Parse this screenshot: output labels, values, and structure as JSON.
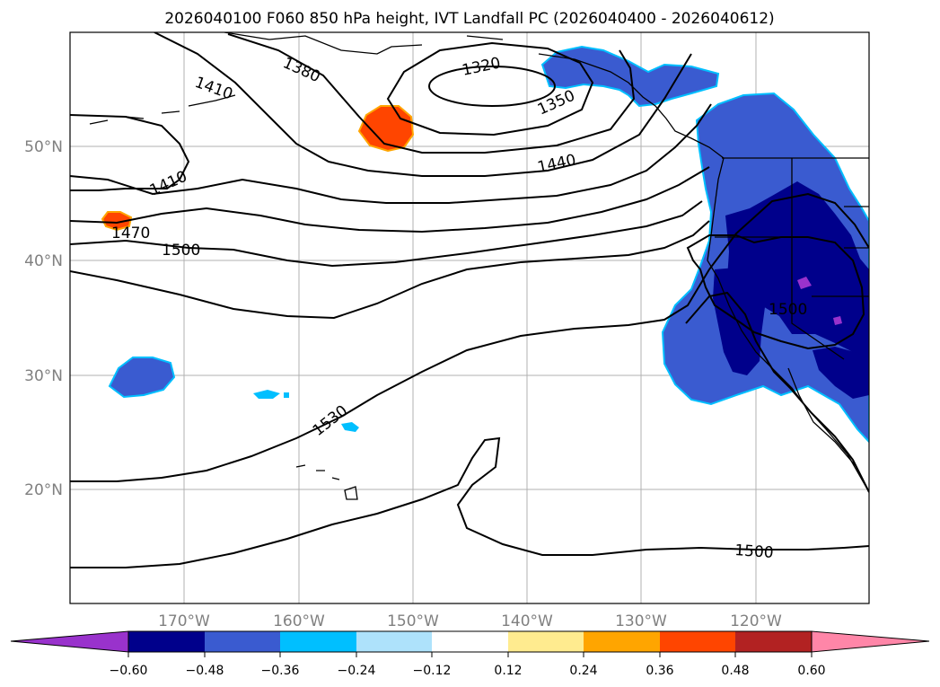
{
  "title": "2026040100 F060 850 hPa height, IVT Landfall PC (2026040400 - 2026040612)",
  "lat_labels": [
    "50°N",
    "40°N",
    "30°N",
    "20°N"
  ],
  "lon_labels": [
    "170°W",
    "160°W",
    "150°W",
    "140°W",
    "130°W",
    "120°W"
  ],
  "contour_labels": [
    "1320",
    "1350",
    "1380",
    "1410",
    "1410",
    "1440",
    "1470",
    "1500",
    "1500",
    "1500",
    "1530"
  ],
  "colorbar": {
    "ticks": [
      "−0.60",
      "−0.48",
      "−0.36",
      "−0.24",
      "−0.12",
      "0.12",
      "0.24",
      "0.36",
      "0.48",
      "0.60"
    ],
    "colors": [
      "#9932cc",
      "#00008b",
      "#3a5bd0",
      "#00bfff",
      "#aee2fb",
      "#ffffff",
      "#ffeb8f",
      "#ffa500",
      "#ff4500",
      "#b22222",
      "#ff86a8"
    ]
  },
  "colors": {
    "deep_negative": "#00008b",
    "mid_negative": "#3a5bd0",
    "light_negative": "#00bfff",
    "positive": "#ff4500",
    "positive_edge": "#ffa500",
    "gridline": "#b0b0b0",
    "contour": "#000000"
  }
}
